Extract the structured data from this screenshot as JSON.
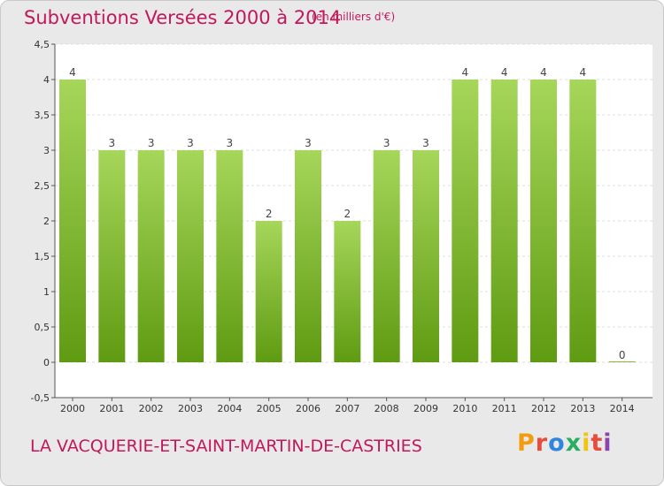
{
  "header": {
    "title": "Subventions Versées 2000 à 2014",
    "unit_note": "(en milliers d'€)"
  },
  "footer": {
    "place": "LA VACQUERIE-ET-SAINT-MARTIN-DE-CASTRIES",
    "logo_text": "Proxiti",
    "logo_colors": [
      "#f39c12",
      "#e74c3c",
      "#2e86de",
      "#27ae60",
      "#f1c40f",
      "#e74c3c",
      "#8e44ad"
    ]
  },
  "chart_data": {
    "type": "bar",
    "categories": [
      "2000",
      "2001",
      "2002",
      "2003",
      "2004",
      "2005",
      "2006",
      "2007",
      "2008",
      "2009",
      "2010",
      "2011",
      "2012",
      "2013",
      "2014"
    ],
    "values": [
      4,
      3,
      3,
      3,
      3,
      2,
      3,
      2,
      3,
      3,
      4,
      4,
      4,
      4,
      0
    ],
    "data_labels": [
      "4",
      "3",
      "3",
      "3",
      "3",
      "2",
      "3",
      "2",
      "3",
      "3",
      "4",
      "4",
      "4",
      "4",
      "0"
    ],
    "yticks": [
      -0.5,
      0,
      0.5,
      1,
      1.5,
      2,
      2.5,
      3,
      3.5,
      4,
      4.5
    ],
    "ytick_labels": [
      "-0,5",
      "0",
      "0,5",
      "1",
      "1,5",
      "2",
      "2,5",
      "3",
      "3,5",
      "4",
      "4,5"
    ],
    "ylim": [
      -0.5,
      4.5
    ],
    "grid": "horizontal",
    "bar_color_top": "#a6d65a",
    "bar_color_bottom": "#5f9b12"
  }
}
